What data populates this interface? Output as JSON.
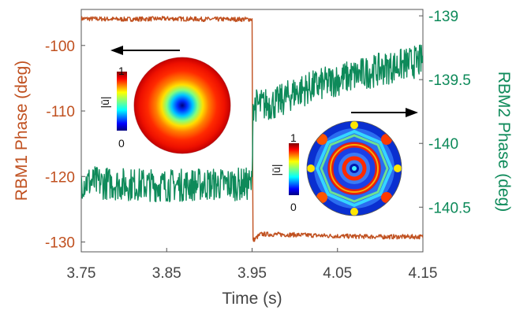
{
  "chart_data": {
    "type": "line",
    "xlabel": "Time (s)",
    "ylabel_left": "RBM1 Phase (deg)",
    "ylabel_right": "RBM2 Phase (deg)",
    "xlim": [
      3.75,
      4.15
    ],
    "ylim_left": [
      -131.5,
      -94.5
    ],
    "ylim_right": [
      -140.85,
      -138.95
    ],
    "x_ticks": [
      "3.75",
      "3.85",
      "3.95",
      "4.05",
      "4.15"
    ],
    "y_ticks_left": [
      "-100",
      "-110",
      "-120",
      "-130"
    ],
    "y_ticks_right": [
      "-139",
      "-139.5",
      "-140",
      "-140.5"
    ],
    "grid": false,
    "colors": {
      "left_series": "#c0501f",
      "right_series": "#0e8a5a"
    },
    "series": [
      {
        "name": "RBM1 Phase",
        "axis": "left",
        "color": "#c0501f",
        "x": [
          3.75,
          3.8,
          3.85,
          3.9,
          3.95,
          3.951,
          3.96,
          4.0,
          4.05,
          4.1,
          4.15
        ],
        "y": [
          -95.9,
          -96.0,
          -95.9,
          -96.0,
          -96.0,
          -129.8,
          -128.8,
          -128.9,
          -129.1,
          -129.2,
          -129.2
        ],
        "noise": 0.35
      },
      {
        "name": "RBM2 Phase",
        "axis": "right",
        "color": "#0e8a5a",
        "x": [
          3.75,
          3.8,
          3.85,
          3.9,
          3.95,
          3.951,
          3.96,
          3.98,
          4.0,
          4.05,
          4.1,
          4.15
        ],
        "y": [
          -140.3,
          -140.32,
          -140.33,
          -140.32,
          -140.32,
          -139.7,
          -139.7,
          -139.68,
          -139.6,
          -139.5,
          -139.42,
          -139.35
        ],
        "noise": 0.13
      }
    ],
    "insets": [
      {
        "colorbar_label": "|ū|",
        "cbar_max": "1",
        "cbar_min": "0",
        "mode": "RBM1",
        "arrow": "left"
      },
      {
        "colorbar_label": "|ū|",
        "cbar_max": "1",
        "cbar_min": "0",
        "mode": "RBM2",
        "arrow": "right"
      }
    ]
  }
}
